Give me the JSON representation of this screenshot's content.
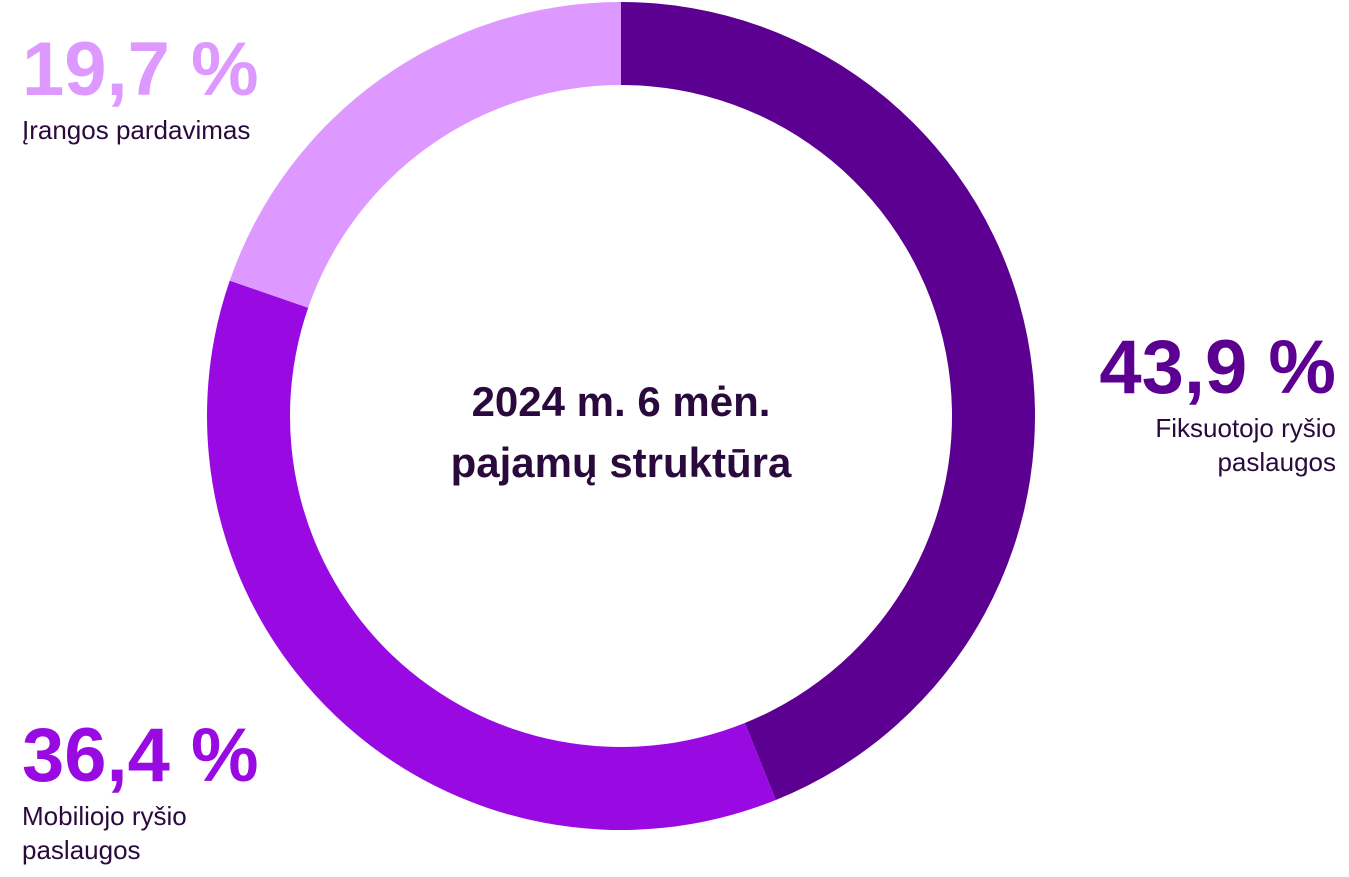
{
  "chart_data": {
    "type": "pie",
    "title": "2024 m. 6 mėn. pajamų struktūra",
    "categories": [
      "Fiksuotojo ryšio paslaugos",
      "Mobiliojo ryšio paslaugos",
      "Įrangos pardavimas"
    ],
    "values": [
      43.9,
      36.4,
      19.7
    ],
    "value_labels": [
      "43,9 %",
      "36,4 %",
      "19,7 %"
    ],
    "colors": [
      "#5c0091",
      "#990ae3",
      "#dd99ff"
    ]
  }
}
